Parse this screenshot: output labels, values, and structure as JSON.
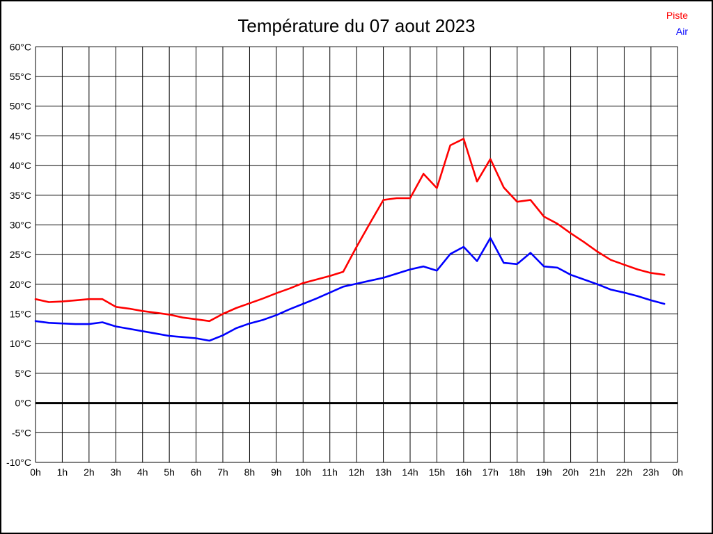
{
  "page": {
    "background": "#ffffff",
    "border_color": "#000000"
  },
  "legend": {
    "items": [
      {
        "label": "Piste",
        "color": "#ff0000"
      },
      {
        "label": "Air",
        "color": "#0000ff"
      }
    ],
    "position": "top-right"
  },
  "chart_data": {
    "type": "line",
    "title": "Température du 07 aout 2023",
    "xlabel": "",
    "ylabel": "",
    "x_unit": "hours",
    "xlim": [
      0,
      24
    ],
    "ylim": [
      -10,
      60
    ],
    "grid": true,
    "grid_color": "#000000",
    "zero_line": {
      "value": 0,
      "color": "#000000",
      "width": 3
    },
    "legend_position": "top-right",
    "x_tick_labels": [
      "0h",
      "1h",
      "2h",
      "3h",
      "4h",
      "5h",
      "6h",
      "7h",
      "8h",
      "9h",
      "10h",
      "11h",
      "12h",
      "13h",
      "14h",
      "15h",
      "16h",
      "17h",
      "18h",
      "19h",
      "20h",
      "21h",
      "22h",
      "23h",
      "0h"
    ],
    "y_tick_labels": [
      "60°C",
      "55°C",
      "50°C",
      "45°C",
      "40°C",
      "35°C",
      "30°C",
      "25°C",
      "20°C",
      "15°C",
      "10°C",
      "5°C",
      "0°C",
      "-5°C",
      "-10°C"
    ],
    "x": [
      0,
      0.5,
      1,
      1.5,
      2,
      2.5,
      3,
      3.5,
      4,
      4.5,
      5,
      5.5,
      6,
      6.5,
      7,
      7.5,
      8,
      8.5,
      9,
      9.5,
      10,
      10.5,
      11,
      11.5,
      12,
      12.5,
      13,
      13.5,
      14,
      14.5,
      15,
      15.5,
      16,
      16.5,
      17,
      17.5,
      18,
      18.5,
      19,
      19.5,
      20,
      20.5,
      21,
      21.5,
      22,
      22.5,
      23,
      23.5
    ],
    "series": [
      {
        "name": "Piste",
        "color": "#ff0000",
        "values": [
          17.5,
          17.0,
          17.1,
          17.3,
          17.5,
          17.5,
          16.2,
          15.9,
          15.5,
          15.2,
          14.9,
          14.4,
          14.1,
          13.8,
          15.0,
          16.0,
          16.8,
          17.6,
          18.5,
          19.3,
          20.2,
          20.8,
          21.4,
          22.1,
          26.3,
          30.3,
          34.2,
          34.5,
          34.5,
          38.6,
          36.2,
          43.4,
          44.5,
          37.3,
          41.1,
          36.3,
          33.9,
          34.2,
          31.4,
          30.2,
          28.6,
          27.1,
          25.5,
          24.1,
          23.3,
          22.5,
          21.9,
          21.6
        ]
      },
      {
        "name": "Air",
        "color": "#0000ff",
        "values": [
          13.8,
          13.5,
          13.4,
          13.3,
          13.3,
          13.6,
          12.9,
          12.5,
          12.1,
          11.7,
          11.3,
          11.1,
          10.9,
          10.5,
          11.4,
          12.6,
          13.4,
          14.0,
          14.8,
          15.8,
          16.7,
          17.6,
          18.6,
          19.6,
          20.1,
          20.6,
          21.1,
          21.8,
          22.5,
          23.0,
          22.3,
          25.1,
          26.3,
          23.9,
          27.8,
          23.6,
          23.4,
          25.3,
          23.0,
          22.8,
          21.6,
          20.8,
          20.0,
          19.1,
          18.6,
          18.0,
          17.3,
          16.7
        ]
      }
    ]
  }
}
